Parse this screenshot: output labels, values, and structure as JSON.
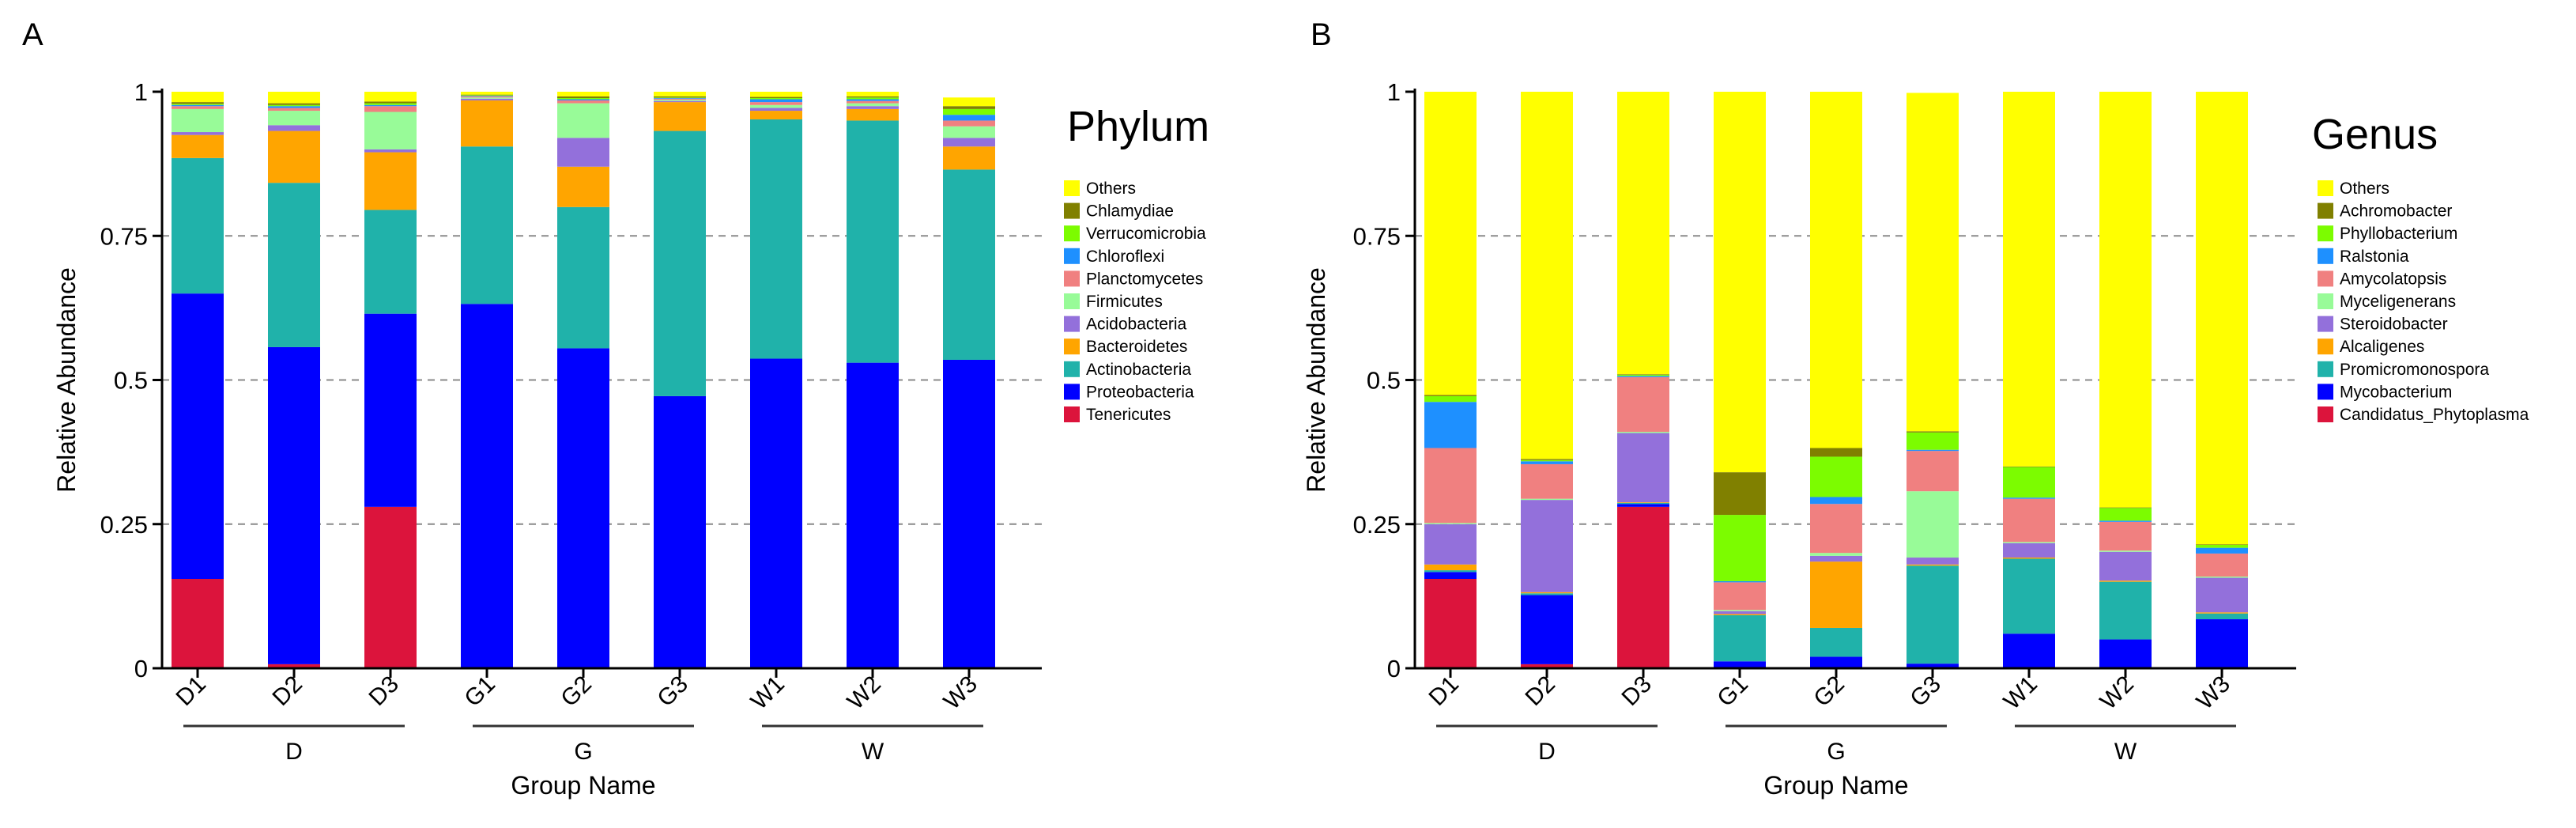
{
  "chart_data": [
    {
      "panel_label": "A",
      "type": "bar",
      "stacked": true,
      "title": "Phylum",
      "ylabel": "Relative Abundance",
      "xlabel": "Group Name",
      "ylim": [
        0,
        1
      ],
      "y_ticks": [
        "0",
        "0.25",
        "0.5",
        "0.75",
        "1"
      ],
      "grid": "dashed horizontal at 0.25, 0.5, 0.75",
      "legend_position": "right",
      "categories": [
        "D1",
        "D2",
        "D3",
        "G1",
        "G2",
        "G3",
        "W1",
        "W2",
        "W3"
      ],
      "groups": [
        {
          "name": "D",
          "members": [
            "D1",
            "D2",
            "D3"
          ]
        },
        {
          "name": "G",
          "members": [
            "G1",
            "G2",
            "G3"
          ]
        },
        {
          "name": "W",
          "members": [
            "W1",
            "W2",
            "W3"
          ]
        }
      ],
      "legend_order": [
        "Others",
        "Chlamydiae",
        "Verrucomicrobia",
        "Chloroflexi",
        "Planctomycetes",
        "Firmicutes",
        "Acidobacteria",
        "Bacteroidetes",
        "Actinobacteria",
        "Proteobacteria",
        "Tenericutes"
      ],
      "series": [
        {
          "name": "Tenericutes",
          "color": "#dc143c",
          "values": [
            0.155,
            0.007,
            0.28,
            0,
            0,
            0,
            0,
            0,
            0
          ]
        },
        {
          "name": "Proteobacteria",
          "color": "#0000ff",
          "values": [
            0.495,
            0.55,
            0.335,
            0.632,
            0.555,
            0.472,
            0.537,
            0.53,
            0.535
          ]
        },
        {
          "name": "Actinobacteria",
          "color": "#20b2aa",
          "values": [
            0.235,
            0.285,
            0.18,
            0.273,
            0.245,
            0.46,
            0.415,
            0.42,
            0.33
          ]
        },
        {
          "name": "Bacteroidetes",
          "color": "#ffa500",
          "values": [
            0.04,
            0.09,
            0.1,
            0.08,
            0.07,
            0.05,
            0.015,
            0.02,
            0.04
          ]
        },
        {
          "name": "Acidobacteria",
          "color": "#9370db",
          "values": [
            0.005,
            0.01,
            0.005,
            0.003,
            0.05,
            0.002,
            0.005,
            0.005,
            0.015
          ]
        },
        {
          "name": "Firmicutes",
          "color": "#98fb98",
          "values": [
            0.04,
            0.025,
            0.065,
            0.002,
            0.06,
            0.002,
            0.005,
            0.005,
            0.02
          ]
        },
        {
          "name": "Planctomycetes",
          "color": "#f08080",
          "values": [
            0.005,
            0.005,
            0.01,
            0.002,
            0.005,
            0.002,
            0.005,
            0.004,
            0.01
          ]
        },
        {
          "name": "Chloroflexi",
          "color": "#1e90ff",
          "values": [
            0.002,
            0.003,
            0.002,
            0.001,
            0.002,
            0.001,
            0.005,
            0.003,
            0.01
          ]
        },
        {
          "name": "Verrucomicrobia",
          "color": "#7cfc00",
          "values": [
            0.002,
            0.002,
            0.003,
            0.001,
            0.002,
            0.001,
            0.002,
            0.003,
            0.01
          ]
        },
        {
          "name": "Chlamydiae",
          "color": "#808000",
          "values": [
            0.003,
            0.003,
            0.003,
            0.001,
            0.003,
            0.002,
            0.002,
            0.002,
            0.005
          ]
        },
        {
          "name": "Others",
          "color": "#ffff00",
          "values": [
            0.018,
            0.02,
            0.017,
            0.005,
            0.008,
            0.008,
            0.009,
            0.008,
            0.015
          ]
        }
      ]
    },
    {
      "panel_label": "B",
      "type": "bar",
      "stacked": true,
      "title": "Genus",
      "ylabel": "Relative Abundance",
      "xlabel": "Group Name",
      "ylim": [
        0,
        1
      ],
      "y_ticks": [
        "0",
        "0.25",
        "0.5",
        "0.75",
        "1"
      ],
      "grid": "dashed horizontal at 0.25, 0.5, 0.75",
      "legend_position": "right",
      "categories": [
        "D1",
        "D2",
        "D3",
        "G1",
        "G2",
        "G3",
        "W1",
        "W2",
        "W3"
      ],
      "groups": [
        {
          "name": "D",
          "members": [
            "D1",
            "D2",
            "D3"
          ]
        },
        {
          "name": "G",
          "members": [
            "G1",
            "G2",
            "G3"
          ]
        },
        {
          "name": "W",
          "members": [
            "W1",
            "W2",
            "W3"
          ]
        }
      ],
      "legend_order": [
        "Others",
        "Achromobacter",
        "Phyllobacterium",
        "Ralstonia",
        "Amycolatopsis",
        "Myceligenerans",
        "Steroidobacter",
        "Alcaligenes",
        "Promicromonospora",
        "Mycobacterium",
        "Candidatus_Phytoplasma"
      ],
      "series": [
        {
          "name": "Candidatus_Phytoplasma",
          "color": "#dc143c",
          "values": [
            0.155,
            0.007,
            0.28,
            0,
            0,
            0,
            0,
            0,
            0
          ]
        },
        {
          "name": "Mycobacterium",
          "color": "#0000ff",
          "values": [
            0.012,
            0.12,
            0.005,
            0.012,
            0.02,
            0.008,
            0.06,
            0.05,
            0.085
          ]
        },
        {
          "name": "Promicromonospora",
          "color": "#20b2aa",
          "values": [
            0.003,
            0.003,
            0.002,
            0.08,
            0.05,
            0.17,
            0.13,
            0.1,
            0.01
          ]
        },
        {
          "name": "Alcaligenes",
          "color": "#ffa500",
          "values": [
            0.01,
            0.002,
            0.001,
            0.002,
            0.115,
            0.002,
            0.002,
            0.002,
            0.002
          ]
        },
        {
          "name": "Steroidobacter",
          "color": "#9370db",
          "values": [
            0.07,
            0.16,
            0.12,
            0.005,
            0.01,
            0.012,
            0.025,
            0.05,
            0.06
          ]
        },
        {
          "name": "Myceligenerans",
          "color": "#98fb98",
          "values": [
            0.002,
            0.002,
            0.002,
            0.002,
            0.005,
            0.115,
            0.002,
            0.002,
            0.002
          ]
        },
        {
          "name": "Amycolatopsis",
          "color": "#f08080",
          "values": [
            0.13,
            0.06,
            0.095,
            0.048,
            0.085,
            0.07,
            0.075,
            0.05,
            0.04
          ]
        },
        {
          "name": "Ralstonia",
          "color": "#1e90ff",
          "values": [
            0.08,
            0.005,
            0.002,
            0.002,
            0.012,
            0.002,
            0.002,
            0.002,
            0.01
          ]
        },
        {
          "name": "Phyllobacterium",
          "color": "#7cfc00",
          "values": [
            0.01,
            0.002,
            0.002,
            0.115,
            0.07,
            0.03,
            0.053,
            0.022,
            0.005
          ]
        },
        {
          "name": "Achromobacter",
          "color": "#808000",
          "values": [
            0.002,
            0.002,
            0.001,
            0.074,
            0.015,
            0.002,
            0.001,
            0.001,
            0.001
          ]
        },
        {
          "name": "Others",
          "color": "#ffff00",
          "values": [
            0.526,
            0.637,
            0.49,
            0.66,
            0.618,
            0.587,
            0.65,
            0.721,
            0.785
          ]
        }
      ]
    }
  ]
}
